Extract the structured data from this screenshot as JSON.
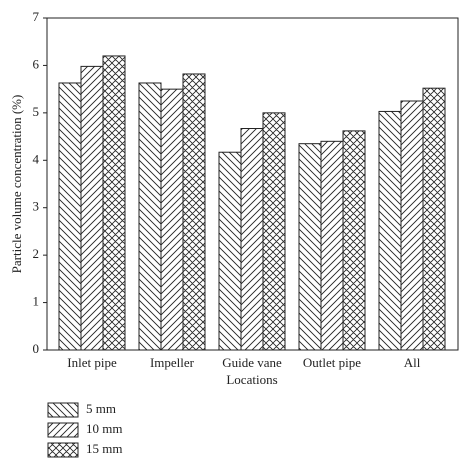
{
  "chart_data": {
    "type": "bar",
    "x_label": "Locations",
    "y_label": "Particle volume concentration (%)",
    "categories": [
      "Inlet pipe",
      "Impeller",
      "Guide vane",
      "Outlet pipe",
      "All"
    ],
    "series": [
      {
        "name": "5 mm",
        "color": "#222222",
        "pattern": "backslash",
        "values": [
          5.63,
          5.63,
          4.17,
          4.35,
          5.03
        ]
      },
      {
        "name": "10 mm",
        "color": "#222222",
        "pattern": "slash",
        "values": [
          5.98,
          5.5,
          4.67,
          4.4,
          5.25
        ]
      },
      {
        "name": "15 mm",
        "color": "#222222",
        "pattern": "cross",
        "values": [
          6.2,
          5.82,
          5.0,
          4.62,
          5.52
        ]
      }
    ],
    "ylim": [
      0,
      7
    ],
    "yticks": [
      0,
      1,
      2,
      3,
      4,
      5,
      6,
      7
    ],
    "grid": false
  }
}
